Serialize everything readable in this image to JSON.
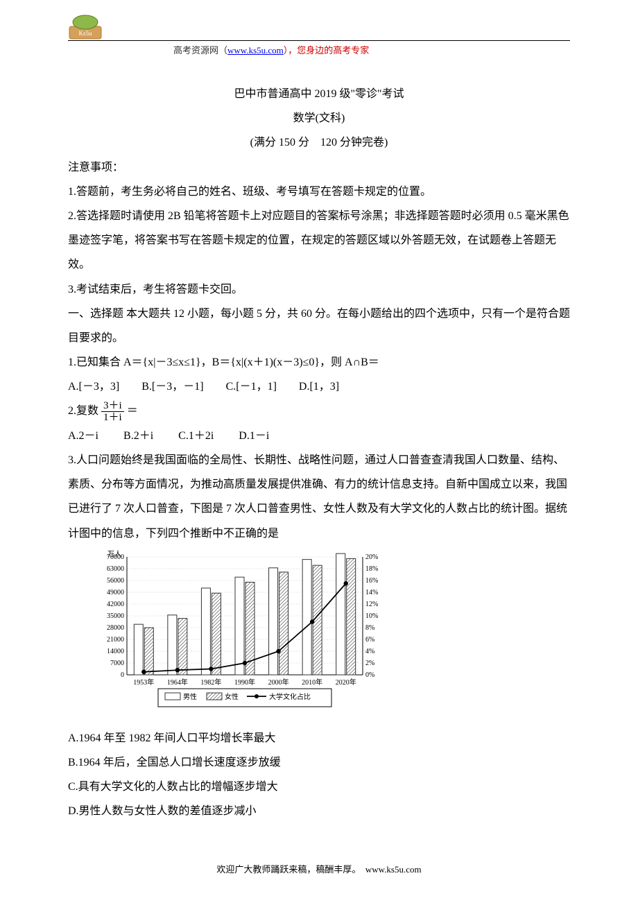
{
  "header": {
    "site": "高考资源网（",
    "url": "www.ks5u.com",
    "tail": "），您身边的高考专家"
  },
  "title1": "巴中市普通高中 2019 级\"零诊\"考试",
  "title2": "数学(文科)",
  "title3": "(满分 150 分　120 分钟完卷)",
  "notice_h": "注意事项：",
  "notice1": "1.答题前，考生务必将自己的姓名、班级、考号填写在答题卡规定的位置。",
  "notice2": "2.答选择题时请使用 2B 铅笔将答题卡上对应题目的答案标号涂黑；非选择题答题时必须用 0.5 毫米黑色墨迹签字笔，将答案书写在答题卡规定的位置，在规定的答题区域以外答题无效，在试题卷上答题无效。",
  "notice3": "3.考试结束后，考生将答题卡交回。",
  "sec1": "一、选择题 本大题共 12 小题，每小题 5 分，共 60 分。在每小题给出的四个选项中，只有一个是符合题目要求的。",
  "q1": "1.已知集合 A＝{x|－3≤x≤1}，B＝{x|(x＋1)(x－3)≤0}，则 A∩B＝",
  "q1o": {
    "a": "A.[－3，3]",
    "b": "B.[－3，－1]",
    "c": "C.[－1，1]",
    "d": "D.[1，3]"
  },
  "q2pre": "2.复数",
  "q2num": "3＋i",
  "q2den": "1＋i",
  "q2post": "＝",
  "q2o": {
    "a": "A.2－i",
    "b": "B.2＋i",
    "c": "C.1＋2i",
    "d": "D.1－i"
  },
  "q3": "3.人口问题始终是我国面临的全局性、长期性、战略性问题，通过人口普查查清我国人口数量、结构、素质、分布等方面情况，为推动高质量发展提供准确、有力的统计信息支持。自新中国成立以来，我国已进行了 7 次人口普查，下图是 7 次人口普查男性、女性人数及有大学文化的人数占比的统计图。据统计图中的信息，下列四个推断中不正确的是",
  "chart": {
    "ylabel": "万人",
    "yticks": [
      0,
      7000,
      14000,
      21000,
      28000,
      35000,
      42000,
      49000,
      56000,
      63000,
      70000
    ],
    "y2ticks": [
      "0%",
      "2%",
      "4%",
      "6%",
      "8%",
      "10%",
      "12%",
      "14%",
      "16%",
      "18%",
      "20%"
    ],
    "cats": [
      "1953年",
      "1964年",
      "1982年",
      "1990年",
      "2000年",
      "2010年",
      "2020年"
    ],
    "male": [
      30000,
      35500,
      51500,
      58000,
      63500,
      68500,
      72000
    ],
    "female": [
      28000,
      33500,
      48500,
      55000,
      61000,
      65000,
      69000
    ],
    "edu_pct": [
      0.5,
      0.8,
      1.0,
      2.0,
      4.0,
      9.0,
      15.5
    ],
    "legend": {
      "m": "男性",
      "f": "女性",
      "e": "大学文化占比"
    },
    "colors": {
      "bar_stroke": "#333333",
      "bar_male_fill": "#ffffff",
      "bar_female_fill": "#d8d8d8",
      "line": "#000000",
      "grid": "#e5e5e5",
      "axis": "#000000",
      "text": "#000000",
      "bg": "#ffffff"
    },
    "fontsize": 10,
    "y_max": 70000,
    "y2_max": 20
  },
  "q3a": "A.1964 年至 1982 年间人口平均增长率最大",
  "q3b": "B.1964 年后，全国总人口增长速度逐步放缓",
  "q3c": "C.具有大学文化的人数占比的增幅逐步增大",
  "q3d": "D.男性人数与女性人数的差值逐步减小",
  "footer": "欢迎广大教师踊跃来稿，稿酬丰厚。　www.ks5u.com"
}
